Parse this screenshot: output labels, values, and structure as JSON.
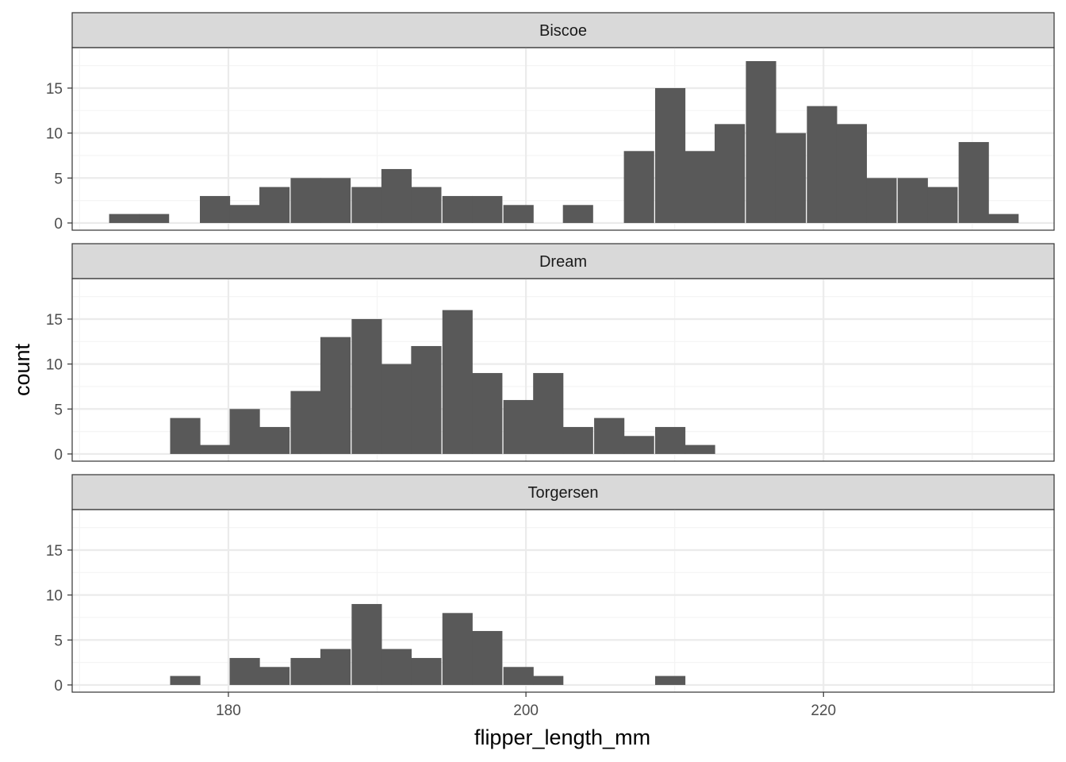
{
  "chart_data": {
    "type": "bar",
    "subtype": "faceted-histogram",
    "xlabel": "flipper_length_mm",
    "ylabel": "count",
    "xlim": [
      169.5,
      235.5
    ],
    "ylim": [
      -0.8,
      19.5
    ],
    "x_ticks": [
      180,
      200,
      220
    ],
    "y_ticks": [
      0,
      5,
      10,
      15
    ],
    "bin_width": 2.033,
    "grid": true,
    "legend": "none",
    "colors": {
      "bar": "#595959",
      "strip_fill": "#d9d9d9",
      "grid_major": "#ebebeb",
      "grid_minor": "#f4f4f4",
      "panel_border": "#333333"
    },
    "facets": [
      {
        "label": "Biscoe",
        "bins": [
          {
            "x": 173.0,
            "count": 1
          },
          {
            "x": 175.0,
            "count": 1
          },
          {
            "x": 179.1,
            "count": 3
          },
          {
            "x": 181.1,
            "count": 2
          },
          {
            "x": 183.1,
            "count": 4
          },
          {
            "x": 185.2,
            "count": 5
          },
          {
            "x": 187.2,
            "count": 5
          },
          {
            "x": 189.3,
            "count": 4
          },
          {
            "x": 191.3,
            "count": 6
          },
          {
            "x": 193.3,
            "count": 4
          },
          {
            "x": 195.4,
            "count": 3
          },
          {
            "x": 197.4,
            "count": 3
          },
          {
            "x": 199.5,
            "count": 2
          },
          {
            "x": 203.5,
            "count": 2
          },
          {
            "x": 207.6,
            "count": 8
          },
          {
            "x": 209.7,
            "count": 15
          },
          {
            "x": 211.7,
            "count": 8
          },
          {
            "x": 213.7,
            "count": 11
          },
          {
            "x": 215.8,
            "count": 18
          },
          {
            "x": 217.8,
            "count": 10
          },
          {
            "x": 219.9,
            "count": 13
          },
          {
            "x": 221.9,
            "count": 11
          },
          {
            "x": 223.9,
            "count": 5
          },
          {
            "x": 226.0,
            "count": 5
          },
          {
            "x": 228.0,
            "count": 4
          },
          {
            "x": 230.1,
            "count": 9
          },
          {
            "x": 232.1,
            "count": 1
          }
        ]
      },
      {
        "label": "Dream",
        "bins": [
          {
            "x": 177.1,
            "count": 4
          },
          {
            "x": 179.1,
            "count": 1
          },
          {
            "x": 181.1,
            "count": 5
          },
          {
            "x": 183.1,
            "count": 3
          },
          {
            "x": 185.2,
            "count": 7
          },
          {
            "x": 187.2,
            "count": 13
          },
          {
            "x": 189.3,
            "count": 15
          },
          {
            "x": 191.3,
            "count": 10
          },
          {
            "x": 193.3,
            "count": 12
          },
          {
            "x": 195.4,
            "count": 16
          },
          {
            "x": 197.4,
            "count": 9
          },
          {
            "x": 199.5,
            "count": 6
          },
          {
            "x": 201.5,
            "count": 9
          },
          {
            "x": 203.5,
            "count": 3
          },
          {
            "x": 205.6,
            "count": 4
          },
          {
            "x": 207.6,
            "count": 2
          },
          {
            "x": 209.7,
            "count": 3
          },
          {
            "x": 211.7,
            "count": 1
          }
        ]
      },
      {
        "label": "Torgersen",
        "bins": [
          {
            "x": 177.1,
            "count": 1
          },
          {
            "x": 181.1,
            "count": 3
          },
          {
            "x": 183.1,
            "count": 2
          },
          {
            "x": 185.2,
            "count": 3
          },
          {
            "x": 187.2,
            "count": 4
          },
          {
            "x": 189.3,
            "count": 9
          },
          {
            "x": 191.3,
            "count": 4
          },
          {
            "x": 193.3,
            "count": 3
          },
          {
            "x": 195.4,
            "count": 8
          },
          {
            "x": 197.4,
            "count": 6
          },
          {
            "x": 199.5,
            "count": 2
          },
          {
            "x": 201.5,
            "count": 1
          },
          {
            "x": 209.7,
            "count": 1
          }
        ]
      }
    ]
  }
}
